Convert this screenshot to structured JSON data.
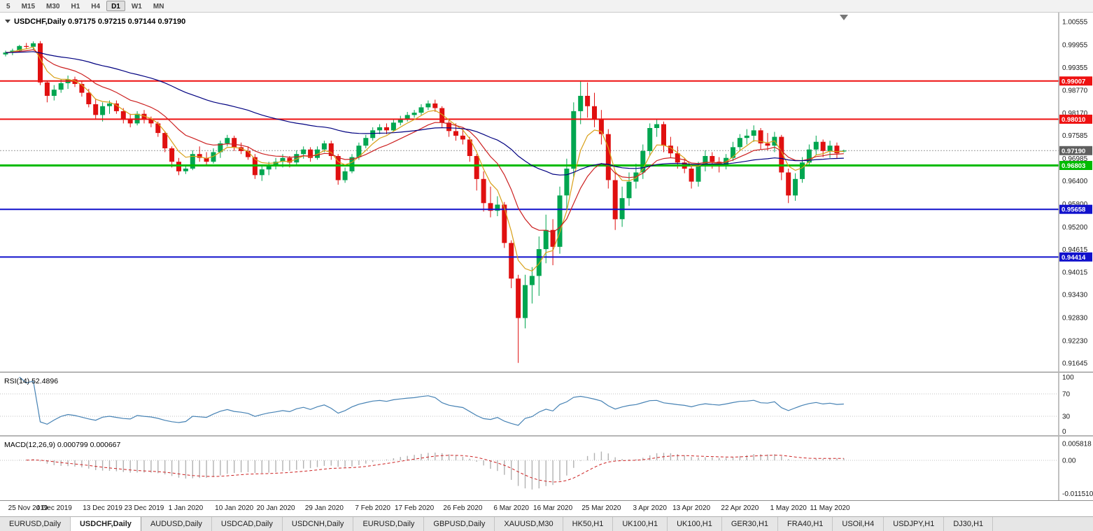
{
  "toolbar": {
    "timeframes": [
      {
        "label": "5",
        "active": false
      },
      {
        "label": "M15",
        "active": false
      },
      {
        "label": "M30",
        "active": false
      },
      {
        "label": "H1",
        "active": false
      },
      {
        "label": "H4",
        "active": false
      },
      {
        "label": "D1",
        "active": true
      },
      {
        "label": "W1",
        "active": false
      },
      {
        "label": "MN",
        "active": false
      }
    ]
  },
  "chart_data": {
    "type": "candlestick",
    "symbol": "USDCHF",
    "timeframe": "Daily",
    "title_line": "USDCHF,Daily 0.97175 0.97215 0.97144 0.97190",
    "ohlc_display": {
      "open": "0.97175",
      "high": "0.97215",
      "low": "0.97144",
      "close": "0.97190"
    },
    "colors": {
      "bull": "#00a650",
      "bear": "#e01010"
    },
    "y_ticks": [
      "1.00555",
      "0.99955",
      "0.99355",
      "0.98770",
      "0.98170",
      "0.97585",
      "0.96985",
      "0.96400",
      "0.95800",
      "0.95200",
      "0.94615",
      "0.94015",
      "0.93430",
      "0.92830",
      "0.92230",
      "0.91645"
    ],
    "x_ticks": [
      {
        "i": 0,
        "label": "25 Nov 2019"
      },
      {
        "i": 7,
        "label": "4 Dec 2019"
      },
      {
        "i": 14,
        "label": "13 Dec 2019"
      },
      {
        "i": 20,
        "label": "23 Dec 2019"
      },
      {
        "i": 26,
        "label": "1 Jan 2020"
      },
      {
        "i": 33,
        "label": "10 Jan 2020"
      },
      {
        "i": 39,
        "label": "20 Jan 2020"
      },
      {
        "i": 46,
        "label": "29 Jan 2020"
      },
      {
        "i": 53,
        "label": "7 Feb 2020"
      },
      {
        "i": 59,
        "label": "17 Feb 2020"
      },
      {
        "i": 66,
        "label": "26 Feb 2020"
      },
      {
        "i": 73,
        "label": "6 Mar 2020"
      },
      {
        "i": 79,
        "label": "16 Mar 2020"
      },
      {
        "i": 86,
        "label": "25 Mar 2020"
      },
      {
        "i": 93,
        "label": "3 Apr 2020"
      },
      {
        "i": 99,
        "label": "13 Apr 2020"
      },
      {
        "i": 106,
        "label": "22 Apr 2020"
      },
      {
        "i": 113,
        "label": "1 May 2020"
      },
      {
        "i": 119,
        "label": "11 May 2020"
      }
    ],
    "levels": [
      {
        "price": 0.99007,
        "label": "0.99007",
        "color": "#ee1111",
        "width": 2
      },
      {
        "price": 0.9801,
        "label": "0.98010",
        "color": "#ee1111",
        "width": 2
      },
      {
        "price": 0.96803,
        "label": "0.96803",
        "color": "#00bb00",
        "width": 3
      },
      {
        "price": 0.95658,
        "label": "0.95658",
        "color": "#1111cc",
        "width": 2
      },
      {
        "price": 0.94414,
        "label": "0.94414",
        "color": "#1111cc",
        "width": 2
      }
    ],
    "bid": {
      "price": 0.9719,
      "label": "0.97190",
      "tag_color": "#5f5f5f"
    },
    "ma_lines": [
      {
        "name": "fast-ma",
        "period": 5,
        "color": "#d8a018"
      },
      {
        "name": "medium-ma",
        "period": 13,
        "color": "#cc2020"
      },
      {
        "name": "slow-ma",
        "period": 50,
        "color": "#000080"
      }
    ],
    "candles": [
      [
        0.997,
        0.998,
        0.9965,
        0.9975
      ],
      [
        0.9975,
        0.9985,
        0.9968,
        0.998
      ],
      [
        0.998,
        0.9995,
        0.9975,
        0.9992
      ],
      [
        0.9992,
        1.0,
        0.9985,
        0.999
      ],
      [
        0.999,
        1.0004,
        0.9982,
        0.9999
      ],
      [
        0.9999,
        1.0005,
        0.989,
        0.9897
      ],
      [
        0.9897,
        0.99,
        0.9845,
        0.9862
      ],
      [
        0.9862,
        0.989,
        0.985,
        0.9878
      ],
      [
        0.9878,
        0.9905,
        0.987,
        0.9895
      ],
      [
        0.9895,
        0.9915,
        0.988,
        0.9905
      ],
      [
        0.9905,
        0.9912,
        0.9885,
        0.9893
      ],
      [
        0.9893,
        0.99,
        0.986,
        0.987
      ],
      [
        0.987,
        0.988,
        0.9832,
        0.984
      ],
      [
        0.984,
        0.9855,
        0.98,
        0.9812
      ],
      [
        0.9812,
        0.9845,
        0.9795,
        0.9835
      ],
      [
        0.9835,
        0.985,
        0.9815,
        0.9842
      ],
      [
        0.9842,
        0.985,
        0.9815,
        0.9822
      ],
      [
        0.9822,
        0.983,
        0.979,
        0.98
      ],
      [
        0.98,
        0.9815,
        0.978,
        0.979
      ],
      [
        0.979,
        0.9822,
        0.9785,
        0.9815
      ],
      [
        0.9815,
        0.9825,
        0.979,
        0.98
      ],
      [
        0.98,
        0.9808,
        0.978,
        0.979
      ],
      [
        0.979,
        0.9795,
        0.9755,
        0.9765
      ],
      [
        0.9765,
        0.977,
        0.9715,
        0.9725
      ],
      [
        0.9725,
        0.973,
        0.9675,
        0.969
      ],
      [
        0.969,
        0.97,
        0.9655,
        0.9665
      ],
      [
        0.9665,
        0.968,
        0.9658,
        0.9672
      ],
      [
        0.9672,
        0.972,
        0.9668,
        0.971
      ],
      [
        0.971,
        0.973,
        0.969,
        0.97
      ],
      [
        0.97,
        0.9715,
        0.968,
        0.969
      ],
      [
        0.969,
        0.9725,
        0.9685,
        0.9715
      ],
      [
        0.9715,
        0.9745,
        0.97,
        0.9738
      ],
      [
        0.9738,
        0.976,
        0.973,
        0.9752
      ],
      [
        0.9752,
        0.9758,
        0.9718,
        0.9728
      ],
      [
        0.9728,
        0.974,
        0.971,
        0.9718
      ],
      [
        0.9718,
        0.973,
        0.9695,
        0.9702
      ],
      [
        0.9702,
        0.971,
        0.9645,
        0.9655
      ],
      [
        0.9655,
        0.968,
        0.964,
        0.967
      ],
      [
        0.967,
        0.969,
        0.9655,
        0.9682
      ],
      [
        0.9682,
        0.97,
        0.967,
        0.969
      ],
      [
        0.969,
        0.971,
        0.9675,
        0.97
      ],
      [
        0.97,
        0.9705,
        0.9675,
        0.9688
      ],
      [
        0.9688,
        0.972,
        0.968,
        0.971
      ],
      [
        0.971,
        0.973,
        0.9698,
        0.9722
      ],
      [
        0.9722,
        0.9728,
        0.969,
        0.97
      ],
      [
        0.97,
        0.973,
        0.9695,
        0.9722
      ],
      [
        0.9722,
        0.9745,
        0.9715,
        0.9738
      ],
      [
        0.9738,
        0.9745,
        0.9695,
        0.9705
      ],
      [
        0.9705,
        0.971,
        0.963,
        0.9642
      ],
      [
        0.9642,
        0.9675,
        0.9635,
        0.9665
      ],
      [
        0.9665,
        0.971,
        0.966,
        0.9702
      ],
      [
        0.9702,
        0.974,
        0.9695,
        0.9732
      ],
      [
        0.9732,
        0.976,
        0.9725,
        0.9752
      ],
      [
        0.9752,
        0.978,
        0.9745,
        0.9772
      ],
      [
        0.9772,
        0.9788,
        0.9762,
        0.978
      ],
      [
        0.978,
        0.979,
        0.9762,
        0.9772
      ],
      [
        0.9772,
        0.98,
        0.9768,
        0.9792
      ],
      [
        0.9792,
        0.981,
        0.9785,
        0.9802
      ],
      [
        0.9802,
        0.982,
        0.9795,
        0.9812
      ],
      [
        0.9812,
        0.9825,
        0.9805,
        0.9818
      ],
      [
        0.9818,
        0.984,
        0.9812,
        0.9832
      ],
      [
        0.9832,
        0.985,
        0.9825,
        0.9842
      ],
      [
        0.9842,
        0.9852,
        0.982,
        0.983
      ],
      [
        0.983,
        0.9835,
        0.978,
        0.9792
      ],
      [
        0.9792,
        0.98,
        0.9755,
        0.977
      ],
      [
        0.977,
        0.979,
        0.9745,
        0.9758
      ],
      [
        0.9758,
        0.9775,
        0.9735,
        0.9748
      ],
      [
        0.9748,
        0.9755,
        0.969,
        0.9705
      ],
      [
        0.9705,
        0.971,
        0.9615,
        0.9645
      ],
      [
        0.9645,
        0.9665,
        0.956,
        0.9582
      ],
      [
        0.9582,
        0.9625,
        0.9545,
        0.9562
      ],
      [
        0.9562,
        0.96,
        0.9548,
        0.9578
      ],
      [
        0.9578,
        0.9585,
        0.9465,
        0.9478
      ],
      [
        0.9478,
        0.9485,
        0.936,
        0.9385
      ],
      [
        0.9385,
        0.9395,
        0.9165,
        0.9282
      ],
      [
        0.9282,
        0.9395,
        0.9255,
        0.9368
      ],
      [
        0.9368,
        0.9415,
        0.932,
        0.9392
      ],
      [
        0.9392,
        0.9495,
        0.934,
        0.9462
      ],
      [
        0.9462,
        0.9552,
        0.9425,
        0.9512
      ],
      [
        0.9512,
        0.954,
        0.942,
        0.9468
      ],
      [
        0.9468,
        0.9625,
        0.945,
        0.9602
      ],
      [
        0.9602,
        0.9698,
        0.9565,
        0.9672
      ],
      [
        0.9672,
        0.9845,
        0.965,
        0.9822
      ],
      [
        0.9822,
        0.9901,
        0.9788,
        0.9862
      ],
      [
        0.9862,
        0.9897,
        0.9805,
        0.9835
      ],
      [
        0.9835,
        0.987,
        0.978,
        0.9802
      ],
      [
        0.9802,
        0.9825,
        0.9735,
        0.9762
      ],
      [
        0.9762,
        0.9775,
        0.962,
        0.9642
      ],
      [
        0.9642,
        0.9662,
        0.9512,
        0.954
      ],
      [
        0.954,
        0.9625,
        0.952,
        0.9595
      ],
      [
        0.9595,
        0.9662,
        0.9575,
        0.9638
      ],
      [
        0.9638,
        0.9685,
        0.962,
        0.9662
      ],
      [
        0.9662,
        0.9735,
        0.9645,
        0.9718
      ],
      [
        0.9718,
        0.979,
        0.9705,
        0.9778
      ],
      [
        0.9778,
        0.9802,
        0.9755,
        0.9788
      ],
      [
        0.9788,
        0.9795,
        0.9715,
        0.9732
      ],
      [
        0.9732,
        0.9755,
        0.97,
        0.9712
      ],
      [
        0.9712,
        0.973,
        0.9672,
        0.9688
      ],
      [
        0.9688,
        0.97,
        0.966,
        0.9672
      ],
      [
        0.9672,
        0.968,
        0.962,
        0.9638
      ],
      [
        0.9638,
        0.969,
        0.9625,
        0.9678
      ],
      [
        0.9678,
        0.972,
        0.9665,
        0.9705
      ],
      [
        0.9705,
        0.9715,
        0.9672,
        0.969
      ],
      [
        0.969,
        0.9702,
        0.9662,
        0.9678
      ],
      [
        0.9678,
        0.971,
        0.967,
        0.97
      ],
      [
        0.97,
        0.9742,
        0.9692,
        0.9728
      ],
      [
        0.9728,
        0.9762,
        0.972,
        0.9752
      ],
      [
        0.9752,
        0.9775,
        0.9735,
        0.9758
      ],
      [
        0.9758,
        0.9785,
        0.9742,
        0.9772
      ],
      [
        0.9772,
        0.9778,
        0.9722,
        0.9738
      ],
      [
        0.9738,
        0.9765,
        0.972,
        0.9732
      ],
      [
        0.9732,
        0.9768,
        0.9715,
        0.9755
      ],
      [
        0.9755,
        0.976,
        0.9642,
        0.9662
      ],
      [
        0.9662,
        0.9672,
        0.9582,
        0.9602
      ],
      [
        0.9602,
        0.966,
        0.9588,
        0.9645
      ],
      [
        0.9645,
        0.9702,
        0.9635,
        0.9688
      ],
      [
        0.9688,
        0.9735,
        0.9678,
        0.9722
      ],
      [
        0.9722,
        0.9758,
        0.9708,
        0.9742
      ],
      [
        0.9742,
        0.9748,
        0.9702,
        0.9718
      ],
      [
        0.9718,
        0.9745,
        0.97,
        0.9732
      ],
      [
        0.9732,
        0.974,
        0.9698,
        0.9712
      ],
      [
        0.97175,
        0.97215,
        0.97144,
        0.9719
      ]
    ],
    "indicators": {
      "rsi": {
        "display": "RSI(14) 52.4896",
        "label": "RSI(14)",
        "value": "52.4896",
        "period": 14,
        "levels": [
          100,
          70,
          30,
          0
        ],
        "color": "#4682b4"
      },
      "macd": {
        "display": "MACD(12,26,9) 0.000799 0.000667",
        "label": "MACD(12,26,9)",
        "main_value": "0.000799",
        "signal_value": "0.000667",
        "params": [
          12,
          26,
          9
        ],
        "scale_labels": [
          "0.005818",
          "0.00",
          "-0.011510"
        ],
        "hist_color": "#b2b2b2",
        "signal_color": "#cc2020"
      }
    }
  },
  "tabs": {
    "active_index": 1,
    "items": [
      "EURUSD,Daily",
      "USDCHF,Daily",
      "AUDUSD,Daily",
      "USDCAD,Daily",
      "USDCNH,Daily",
      "EURUSD,Daily",
      "GBPUSD,Daily",
      "XAUUSD,M30",
      "HK50,H1",
      "UK100,H1",
      "UK100,H1",
      "GER30,H1",
      "FRA40,H1",
      "USOil,H4",
      "USDJPY,H1",
      "DJ30,H1"
    ]
  }
}
